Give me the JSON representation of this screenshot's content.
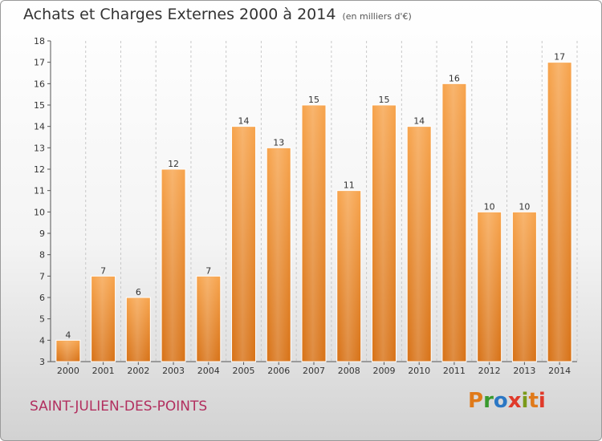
{
  "header": {
    "title": "Achats et Charges Externes 2000 à 2014",
    "unit": "(en milliers d'€)"
  },
  "footer": {
    "commune": "SAINT-JULIEN-DES-POINTS",
    "logo": [
      "P",
      "r",
      "o",
      "x",
      "i",
      "t",
      "i"
    ],
    "logo_colors": [
      "#e07a1a",
      "#3a9a2e",
      "#2b77c4",
      "#e03a2a",
      "#7a9a1a",
      "#e07a1a",
      "#e03a2a"
    ]
  },
  "chart_data": {
    "type": "bar",
    "title": "Achats et Charges Externes 2000 à 2014",
    "categories": [
      "2000",
      "2001",
      "2002",
      "2003",
      "2004",
      "2005",
      "2006",
      "2007",
      "2008",
      "2009",
      "2010",
      "2011",
      "2012",
      "2013",
      "2014"
    ],
    "values": [
      4,
      7,
      6,
      12,
      7,
      14,
      13,
      15,
      11,
      15,
      14,
      16,
      10,
      10,
      17
    ],
    "ylim": [
      3,
      18
    ],
    "yticks": [
      3,
      4,
      5,
      6,
      7,
      8,
      9,
      10,
      11,
      12,
      13,
      14,
      15,
      16,
      17,
      18
    ],
    "grid": "vertical dashed",
    "bar_color": "#f0923a",
    "show_value_labels": true
  }
}
